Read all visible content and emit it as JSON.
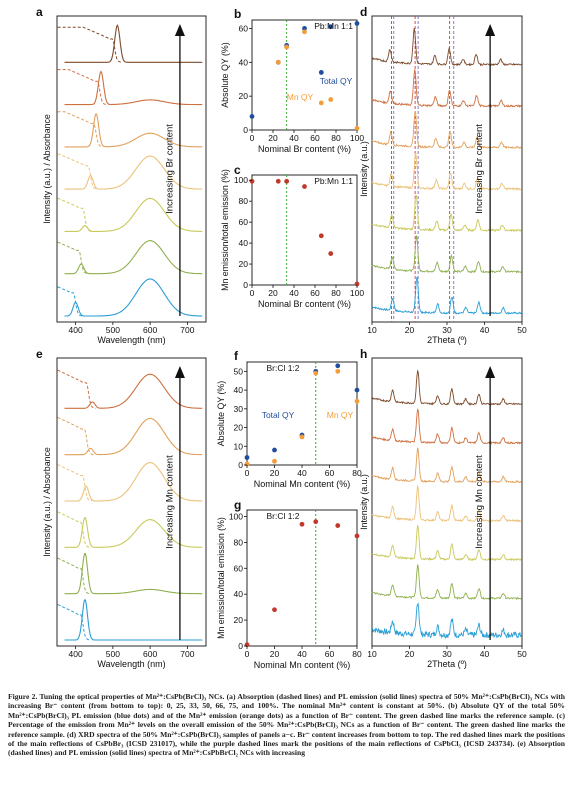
{
  "figure": {
    "panel_letters": [
      "a",
      "b",
      "c",
      "d",
      "e",
      "f",
      "g",
      "h"
    ],
    "caption": "Figure 2. Tuning the optical properties of Mn²⁺:CsPb(BrCl)₃ NCs. (a) Absorption (dashed lines) and PL emission (solid lines) spectra of 50% Mn²⁺:CsPb(BrCl)₃ NCs with increasing Br⁻ content (from bottom to top): 0, 25, 33, 50, 66, 75, and 100%. The nominal Mn²⁺ content is constant at 50%. (b) Absolute QY of the total 50% Mn²⁺:CsPb(BrCl)₃ PL emission (blue dots) and of the Mn²⁺ emission (orange dots) as a function of Br⁻ content. The green dashed line marks the reference sample. (c) Percentage of the emission from Mn²⁺ levels on the overall emission of the 50% Mn²⁺:CsPb(BrCl)₃ NCs as a function of Br⁻ content. The green dashed line marks the reference sample. (d) XRD spectra of the 50% Mn²⁺:CsPb(BrCl)₃ samples of panels a−c. Br⁻ content increases from bottom to top. The red dashed lines mark the positions of the main reflections of CsPbBr₃ (ICSD 231017), while the purple dashed lines mark the positions of the main reflections of CsPbCl₃ (ICSD 243734). (e) Absorption (dashed lines) and PL emission (solid lines) spectra of Mn²⁺:CsPbBrCl₂ NCs with increasing"
  },
  "chart_data": [
    {
      "id": "a",
      "type": "line",
      "xlabel": "Wavelength (nm)",
      "ylabel": "Intensity (a.u.) / Absorbance",
      "xlim": [
        350,
        750
      ],
      "xticks": [
        400,
        500,
        600,
        700
      ],
      "arrow_label": "Increasing Br content",
      "series_colors": [
        "#2a9fd6",
        "#8fb04f",
        "#c9c95c",
        "#ecc27a",
        "#e2a05a",
        "#cf7040",
        "#7b4a2a"
      ],
      "series": [
        {
          "br_percent": 0,
          "abs_onset_nm": 400,
          "pl_peak_nm": 400,
          "pl_height": 0.35,
          "mn_peak_nm": 600,
          "mn_height": 0.95
        },
        {
          "br_percent": 25,
          "abs_onset_nm": 415,
          "pl_peak_nm": 415,
          "pl_height": 0.25,
          "mn_peak_nm": 600,
          "mn_height": 0.85
        },
        {
          "br_percent": 33,
          "abs_onset_nm": 425,
          "pl_peak_nm": 425,
          "pl_height": 0.15,
          "mn_peak_nm": 600,
          "mn_height": 0.85
        },
        {
          "br_percent": 50,
          "abs_onset_nm": 440,
          "pl_peak_nm": 440,
          "pl_height": 0.35,
          "mn_peak_nm": 600,
          "mn_height": 0.85
        },
        {
          "br_percent": 66,
          "abs_onset_nm": 455,
          "pl_peak_nm": 455,
          "pl_height": 0.85,
          "mn_peak_nm": 600,
          "mn_height": 0.35
        },
        {
          "br_percent": 75,
          "abs_onset_nm": 465,
          "pl_peak_nm": 468,
          "pl_height": 0.85,
          "mn_peak_nm": 600,
          "mn_height": 0.12
        },
        {
          "br_percent": 100,
          "abs_onset_nm": 505,
          "pl_peak_nm": 512,
          "pl_height": 0.95,
          "mn_peak_nm": 600,
          "mn_height": 0.0
        }
      ]
    },
    {
      "id": "b",
      "type": "scatter",
      "title": "Pb:Mn 1:1",
      "xlabel": "Nominal Br content (%)",
      "ylabel": "Absolute QY (%)",
      "xlim": [
        0,
        100
      ],
      "ylim": [
        0,
        65
      ],
      "xticks": [
        0,
        20,
        40,
        60,
        80,
        100
      ],
      "yticks": [
        0,
        20,
        40,
        60
      ],
      "reference_x": 33,
      "series": [
        {
          "name": "Total QY",
          "color": "#1f4e9e",
          "x": [
            0,
            25,
            33,
            50,
            66,
            75,
            100
          ],
          "y": [
            8,
            40,
            50,
            60,
            34,
            61,
            63
          ]
        },
        {
          "name": "Mn QY",
          "color": "#f39c3a",
          "x": [
            25,
            33,
            50,
            66,
            75,
            100
          ],
          "y": [
            40,
            49,
            58,
            16,
            18,
            1
          ]
        }
      ]
    },
    {
      "id": "c",
      "type": "scatter",
      "title": "Pb:Mn 1:1",
      "xlabel": "Nominal Br content (%)",
      "ylabel": "Mn emission/total emission (%)",
      "xlim": [
        0,
        100
      ],
      "ylim": [
        0,
        105
      ],
      "xticks": [
        0,
        20,
        40,
        60,
        80,
        100
      ],
      "yticks": [
        0,
        20,
        40,
        60,
        80,
        100
      ],
      "reference_x": 33,
      "series": [
        {
          "color": "#c0392b",
          "x": [
            0,
            25,
            33,
            50,
            66,
            75,
            100
          ],
          "y": [
            99,
            99,
            99,
            94,
            47,
            30,
            1
          ]
        }
      ]
    },
    {
      "id": "d",
      "type": "line",
      "xlabel": "2Theta (º)",
      "ylabel": "Intensity (a.u.)",
      "xlim": [
        10,
        50
      ],
      "xticks": [
        10,
        20,
        30,
        40,
        50
      ],
      "arrow_label": "Increasing Br content",
      "red_lines_2theta": [
        15.2,
        21.5,
        30.7
      ],
      "purple_lines_2theta": [
        15.8,
        22.3,
        31.8
      ],
      "series_colors": [
        "#2a9fd6",
        "#8fb04f",
        "#c9c95c",
        "#ecc27a",
        "#e2a05a",
        "#cf7040",
        "#7b4a2a"
      ],
      "peaks_2theta": [
        15.5,
        22.0,
        27.5,
        31.3,
        35.0,
        38.5,
        45.0
      ]
    },
    {
      "id": "e",
      "type": "line",
      "xlabel": "Wavelength (nm)",
      "ylabel": "Intensity (a.u.) / Absorbance",
      "xlim": [
        350,
        750
      ],
      "xticks": [
        400,
        500,
        600,
        700
      ],
      "arrow_label": "Increasing Mn content",
      "series_colors": [
        "#2a9fd6",
        "#8fb04f",
        "#c9c95c",
        "#ecc27a",
        "#e2a05a",
        "#cf7040",
        "#7b4a2a"
      ],
      "series": [
        {
          "mn_percent": 0,
          "abs_onset_nm": 420,
          "pl_peak_nm": 425,
          "pl_height": 0.95,
          "mn_peak_nm": 600,
          "mn_height": 0.0
        },
        {
          "mn_percent": 20,
          "abs_onset_nm": 420,
          "pl_peak_nm": 425,
          "pl_height": 0.95,
          "mn_peak_nm": 600,
          "mn_height": 0.1
        },
        {
          "mn_percent": 40,
          "abs_onset_nm": 420,
          "pl_peak_nm": 425,
          "pl_height": 0.7,
          "mn_peak_nm": 600,
          "mn_height": 0.65
        },
        {
          "mn_percent": 50,
          "abs_onset_nm": 425,
          "pl_peak_nm": 428,
          "pl_height": 0.35,
          "mn_peak_nm": 600,
          "mn_height": 0.9
        },
        {
          "mn_percent": 66,
          "abs_onset_nm": 430,
          "pl_peak_nm": 440,
          "pl_height": 0.15,
          "mn_peak_nm": 600,
          "mn_height": 0.85
        },
        {
          "mn_percent": 80,
          "abs_onset_nm": 435,
          "pl_peak_nm": 445,
          "pl_height": 0.15,
          "mn_peak_nm": 600,
          "mn_height": 0.8
        }
      ]
    },
    {
      "id": "f",
      "type": "scatter",
      "title": "Br:Cl 1:2",
      "xlabel": "Nominal Mn content (%)",
      "ylabel": "Absolute QY (%)",
      "xlim": [
        0,
        80
      ],
      "ylim": [
        0,
        55
      ],
      "xticks": [
        0,
        20,
        40,
        60,
        80
      ],
      "yticks": [
        0,
        10,
        20,
        30,
        40,
        50
      ],
      "reference_x": 50,
      "series": [
        {
          "name": "Total QY",
          "color": "#1f4e9e",
          "x": [
            0,
            20,
            40,
            50,
            66,
            80
          ],
          "y": [
            4,
            8,
            16,
            50,
            53,
            40
          ]
        },
        {
          "name": "Mn QY",
          "color": "#f39c3a",
          "x": [
            0,
            20,
            40,
            50,
            66,
            80
          ],
          "y": [
            0.5,
            2,
            15,
            49,
            50,
            34
          ]
        }
      ]
    },
    {
      "id": "g",
      "type": "scatter",
      "title": "Br:Cl 1:2",
      "xlabel": "Nominal Mn content (%)",
      "ylabel": "Mn emission/total emission (%)",
      "xlim": [
        0,
        80
      ],
      "ylim": [
        0,
        105
      ],
      "xticks": [
        0,
        20,
        40,
        60,
        80
      ],
      "yticks": [
        0,
        20,
        40,
        60,
        80,
        100
      ],
      "reference_x": 50,
      "series": [
        {
          "color": "#c0392b",
          "x": [
            0,
            20,
            40,
            50,
            66,
            80
          ],
          "y": [
            1,
            28,
            94,
            96,
            93,
            85
          ]
        }
      ]
    },
    {
      "id": "h",
      "type": "line",
      "xlabel": "2Theta (º)",
      "ylabel": "Intensity (a.u.)",
      "xlim": [
        10,
        50
      ],
      "xticks": [
        10,
        20,
        30,
        40,
        50
      ],
      "arrow_label": "Increasing Mn content",
      "series_colors": [
        "#2a9fd6",
        "#8fb04f",
        "#c9c95c",
        "#ecc27a",
        "#e2a05a",
        "#cf7040",
        "#7b4a2a"
      ],
      "peaks_2theta": [
        15.5,
        22.2,
        27.5,
        31.3,
        35.0,
        38.5,
        45.0
      ]
    }
  ]
}
